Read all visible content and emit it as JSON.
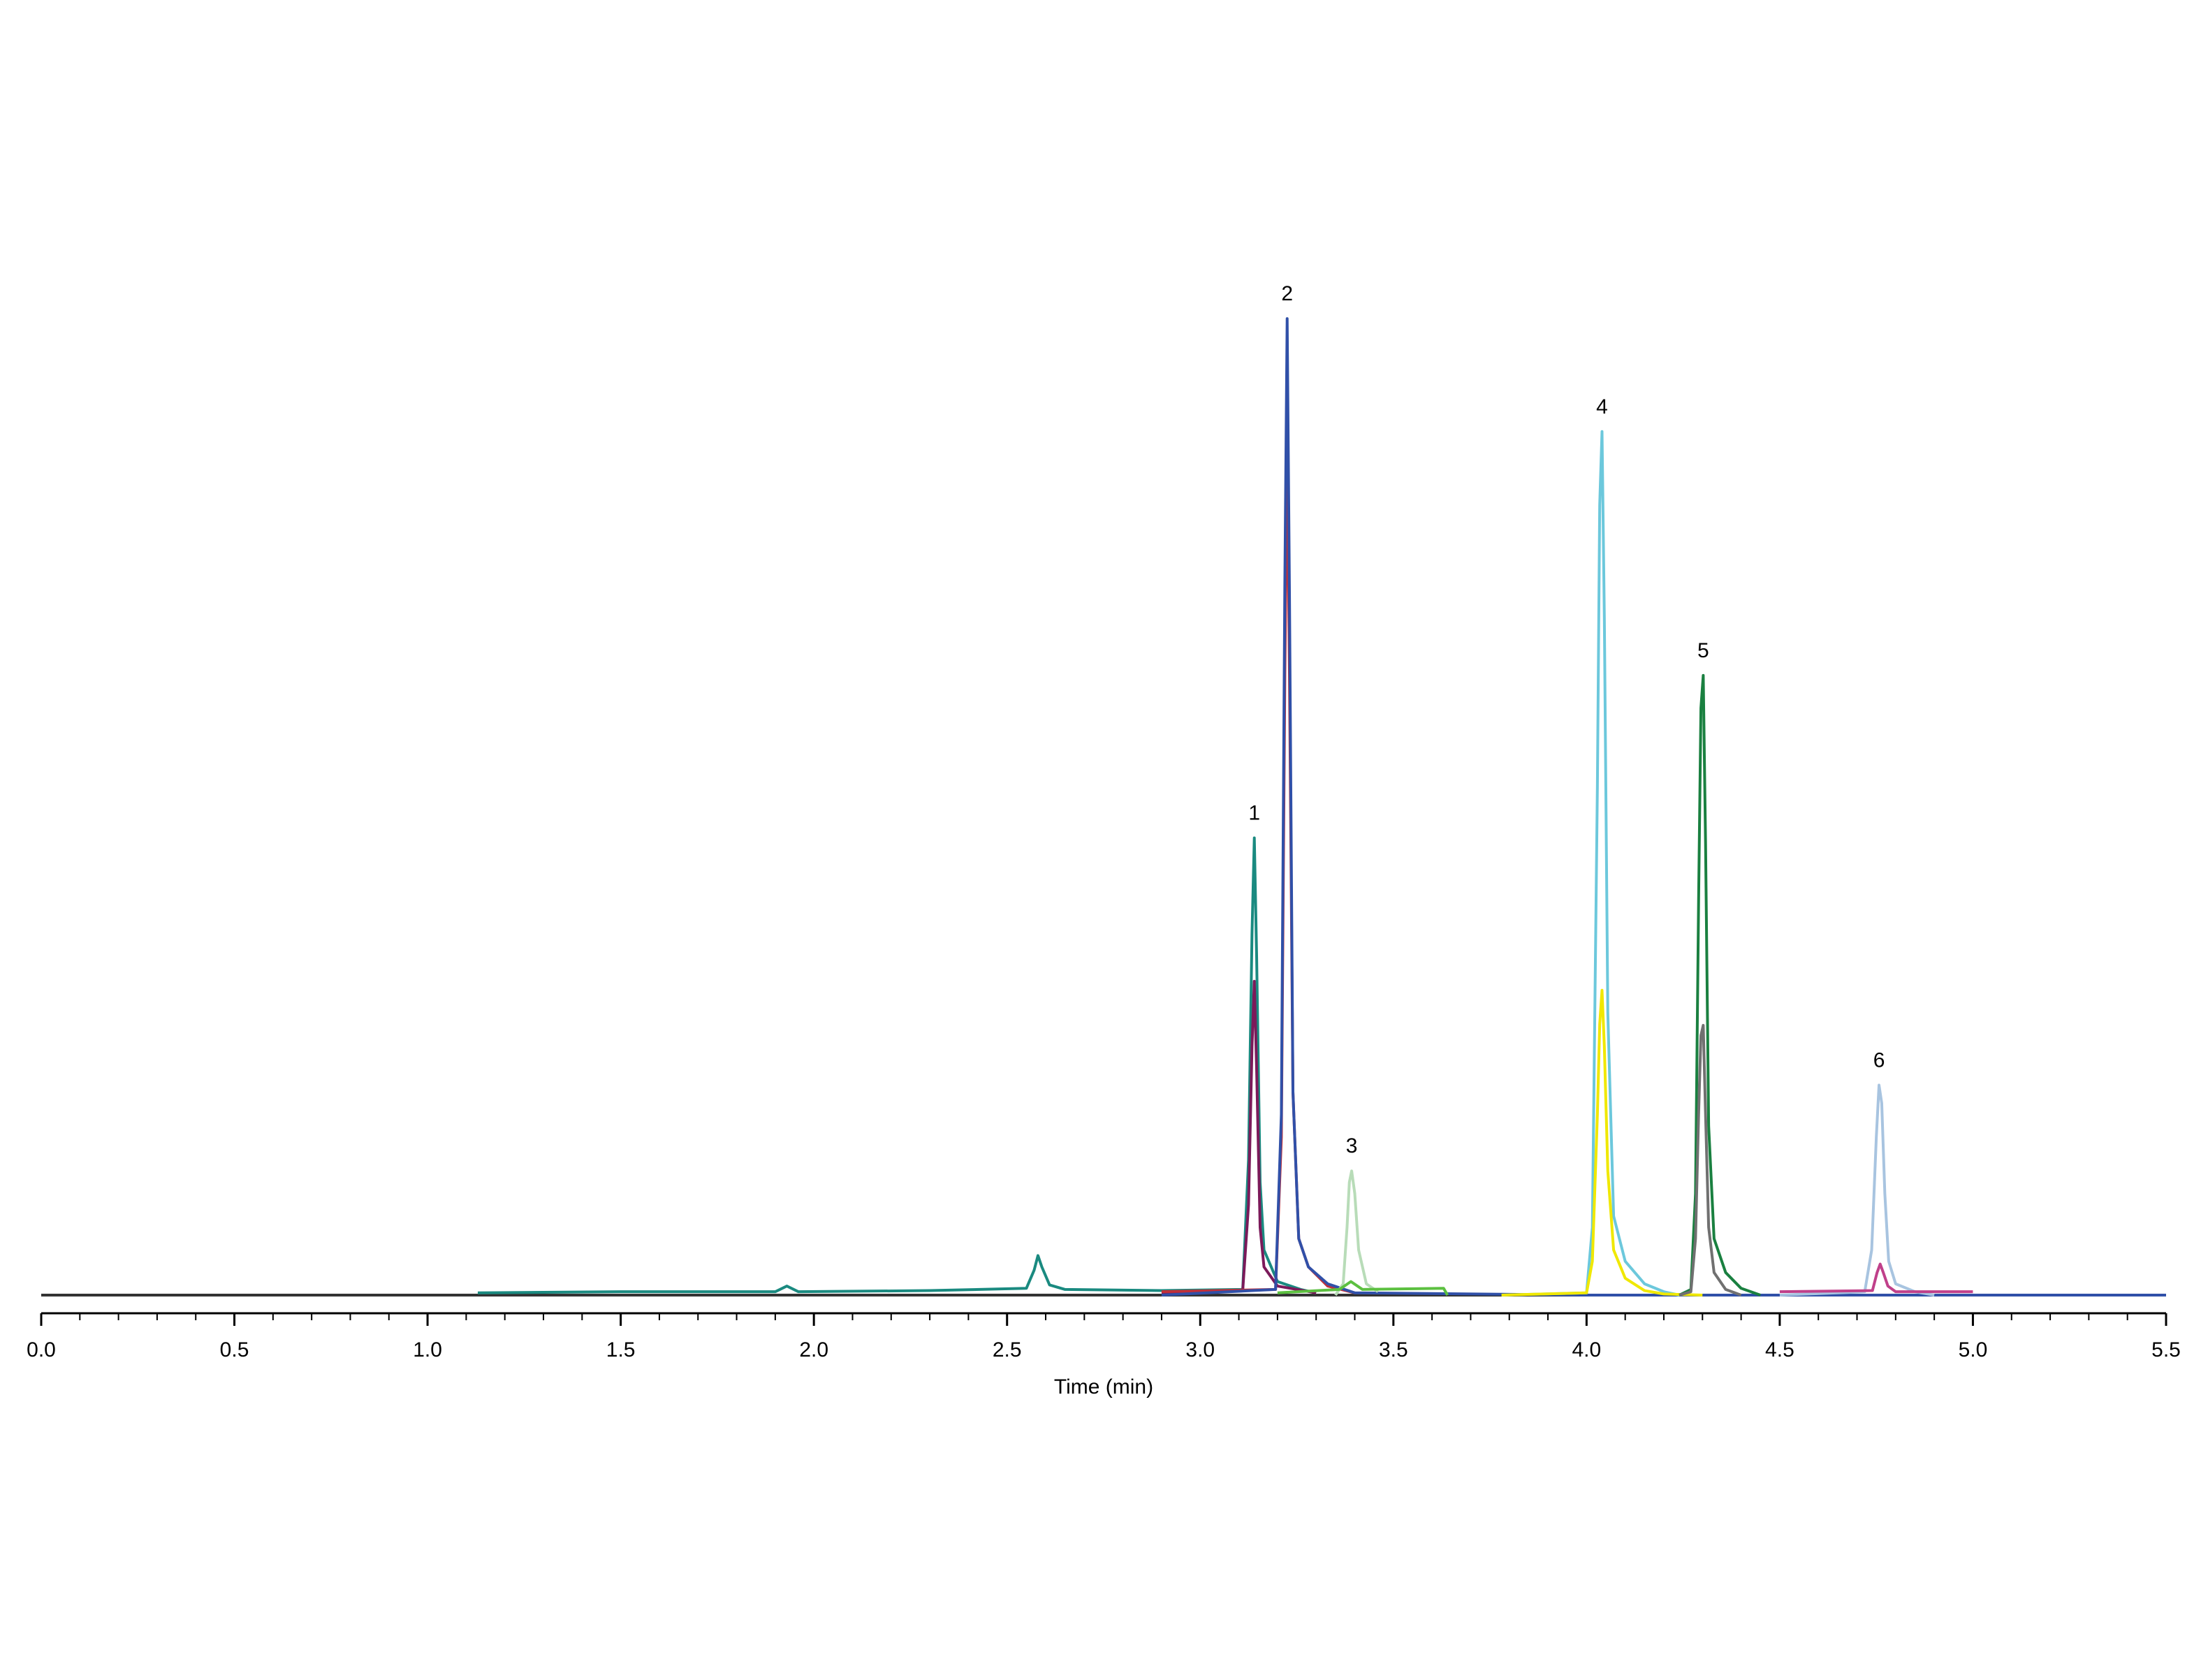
{
  "chart_data": {
    "type": "line",
    "xlabel": "Time (min)",
    "xlim": [
      0,
      5.5
    ],
    "xticks": [
      {
        "value": 0,
        "label": "0.0"
      },
      0.5,
      {
        "value": 1,
        "label": "1.0"
      },
      1.5,
      {
        "value": 2,
        "label": "2.0"
      },
      2.5,
      {
        "value": 3,
        "label": "3.0"
      },
      3.5,
      {
        "value": 4,
        "label": "4.0"
      },
      4.5,
      {
        "value": 5,
        "label": "5.0"
      },
      5.5
    ],
    "xminorticks": [
      0.1,
      0.2,
      0.3,
      0.4,
      0.6,
      0.7,
      0.8,
      0.9,
      1.1,
      1.2,
      1.3,
      1.4,
      1.6,
      1.7,
      1.8,
      1.9,
      2.1,
      2.2,
      2.3,
      2.4,
      2.6,
      2.7,
      2.8,
      2.9,
      3.1,
      3.2,
      3.3,
      3.4,
      3.6,
      3.7,
      3.8,
      3.9,
      4.1,
      4.2,
      4.3,
      4.4,
      4.6,
      4.7,
      4.8,
      4.9,
      5.1,
      5.2,
      5.3,
      5.4
    ],
    "ylim": [
      0,
      100
    ],
    "series": [
      {
        "color": "#333333",
        "x": [
          0,
          5.5
        ],
        "values": [
          0,
          0
        ]
      },
      {
        "color": "#1a8a80",
        "x": [
          1.13,
          1.5,
          1.9,
          1.93,
          1.96,
          2.3,
          2.55,
          2.57,
          2.58,
          2.59,
          2.61,
          2.65,
          2.9,
          3.11,
          3.125,
          3.134,
          3.14,
          3.146,
          3.155,
          3.165,
          3.2,
          3.26,
          3.3
        ],
        "values": [
          0.2,
          0.3,
          0.3,
          0.8,
          0.3,
          0.4,
          0.6,
          2.2,
          3.5,
          2.5,
          0.9,
          0.5,
          0.4,
          0.5,
          12,
          32,
          40.5,
          30,
          10,
          4,
          1.2,
          0.5,
          0.2
        ]
      },
      {
        "color": "#7b1a5a",
        "x": [
          2.9,
          3.11,
          3.125,
          3.134,
          3.14,
          3.146,
          3.155,
          3.165,
          3.2,
          3.3
        ],
        "values": [
          0.2,
          0.4,
          8,
          22,
          27.8,
          20,
          6,
          2.5,
          0.8,
          0.2
        ]
      },
      {
        "color": "#c0303a",
        "x": [
          2.9,
          3.195,
          3.21,
          3.219,
          3.225,
          3.231,
          3.24,
          3.255,
          3.28,
          3.33,
          3.4
        ],
        "values": [
          0.3,
          0.5,
          14,
          55,
          75,
          55,
          18,
          5,
          2.5,
          0.8,
          0.2
        ]
      },
      {
        "color": "#3050a8",
        "x": [
          2.9,
          3.195,
          3.21,
          3.219,
          3.225,
          3.231,
          3.24,
          3.255,
          3.28,
          3.33,
          3.4,
          4.0,
          5.5
        ],
        "values": [
          0,
          0.5,
          16,
          63,
          86.5,
          62,
          18,
          5,
          2.5,
          1,
          0.2,
          0,
          0
        ]
      },
      {
        "color": "#b8dcb8",
        "x": [
          3.35,
          3.37,
          3.38,
          3.386,
          3.392,
          3.4,
          3.41,
          3.43,
          3.46
        ],
        "values": [
          0,
          1,
          6,
          10,
          11,
          9,
          4,
          1,
          0.3
        ]
      },
      {
        "color": "#5cc040",
        "x": [
          3.2,
          3.36,
          3.39,
          3.42,
          3.63,
          3.64
        ],
        "values": [
          0.2,
          0.5,
          1.2,
          0.5,
          0.6,
          0
        ]
      },
      {
        "color": "#6cc8dc",
        "x": [
          3.78,
          4.0,
          4.015,
          4.028,
          4.034,
          4.04,
          4.046,
          4.055,
          4.07,
          4.1,
          4.15,
          4.2,
          4.24
        ],
        "values": [
          0,
          0.2,
          6,
          45,
          70,
          76.5,
          60,
          25,
          7,
          3,
          1,
          0.3,
          0
        ]
      },
      {
        "color": "#f0e800",
        "x": [
          3.78,
          4.0,
          4.015,
          4.028,
          4.034,
          4.04,
          4.046,
          4.055,
          4.07,
          4.1,
          4.15,
          4.2,
          4.3
        ],
        "values": [
          0,
          0.2,
          3,
          16,
          24,
          27,
          22,
          11,
          4,
          1.5,
          0.4,
          0.1,
          0
        ]
      },
      {
        "color": "#1a8040",
        "x": [
          4.24,
          4.27,
          4.282,
          4.29,
          4.296,
          4.302,
          4.308,
          4.316,
          4.33,
          4.36,
          4.4,
          4.45
        ],
        "values": [
          0,
          0.5,
          9,
          35,
          52,
          54.9,
          40,
          15,
          5,
          2,
          0.6,
          0
        ]
      },
      {
        "color": "#707070",
        "x": [
          4.24,
          4.27,
          4.282,
          4.29,
          4.296,
          4.302,
          4.308,
          4.316,
          4.33,
          4.36,
          4.4
        ],
        "values": [
          0,
          0.3,
          5,
          16,
          23,
          23.9,
          16,
          6,
          2,
          0.5,
          0
        ]
      },
      {
        "color": "#a8c4e0",
        "x": [
          4.5,
          4.72,
          4.738,
          4.75,
          4.757,
          4.764,
          4.772,
          4.782,
          4.8,
          4.85,
          4.9
        ],
        "values": [
          0,
          0.3,
          4,
          14,
          18.6,
          17,
          9,
          3,
          1,
          0.3,
          0
        ]
      },
      {
        "color": "#c0408a",
        "x": [
          4.5,
          4.74,
          4.752,
          4.76,
          4.768,
          4.78,
          4.8,
          5.0
        ],
        "values": [
          0.3,
          0.4,
          2,
          2.75,
          2,
          0.8,
          0.3,
          0.3
        ]
      }
    ],
    "annotations": [
      {
        "text": "1",
        "x": 3.14,
        "y": 40.5
      },
      {
        "text": "2",
        "x": 3.225,
        "y": 86.5
      },
      {
        "text": "3",
        "x": 3.392,
        "y": 11
      },
      {
        "text": "4",
        "x": 4.04,
        "y": 76.5
      },
      {
        "text": "5",
        "x": 4.302,
        "y": 54.9
      },
      {
        "text": "6",
        "x": 4.757,
        "y": 18.6
      }
    ]
  }
}
